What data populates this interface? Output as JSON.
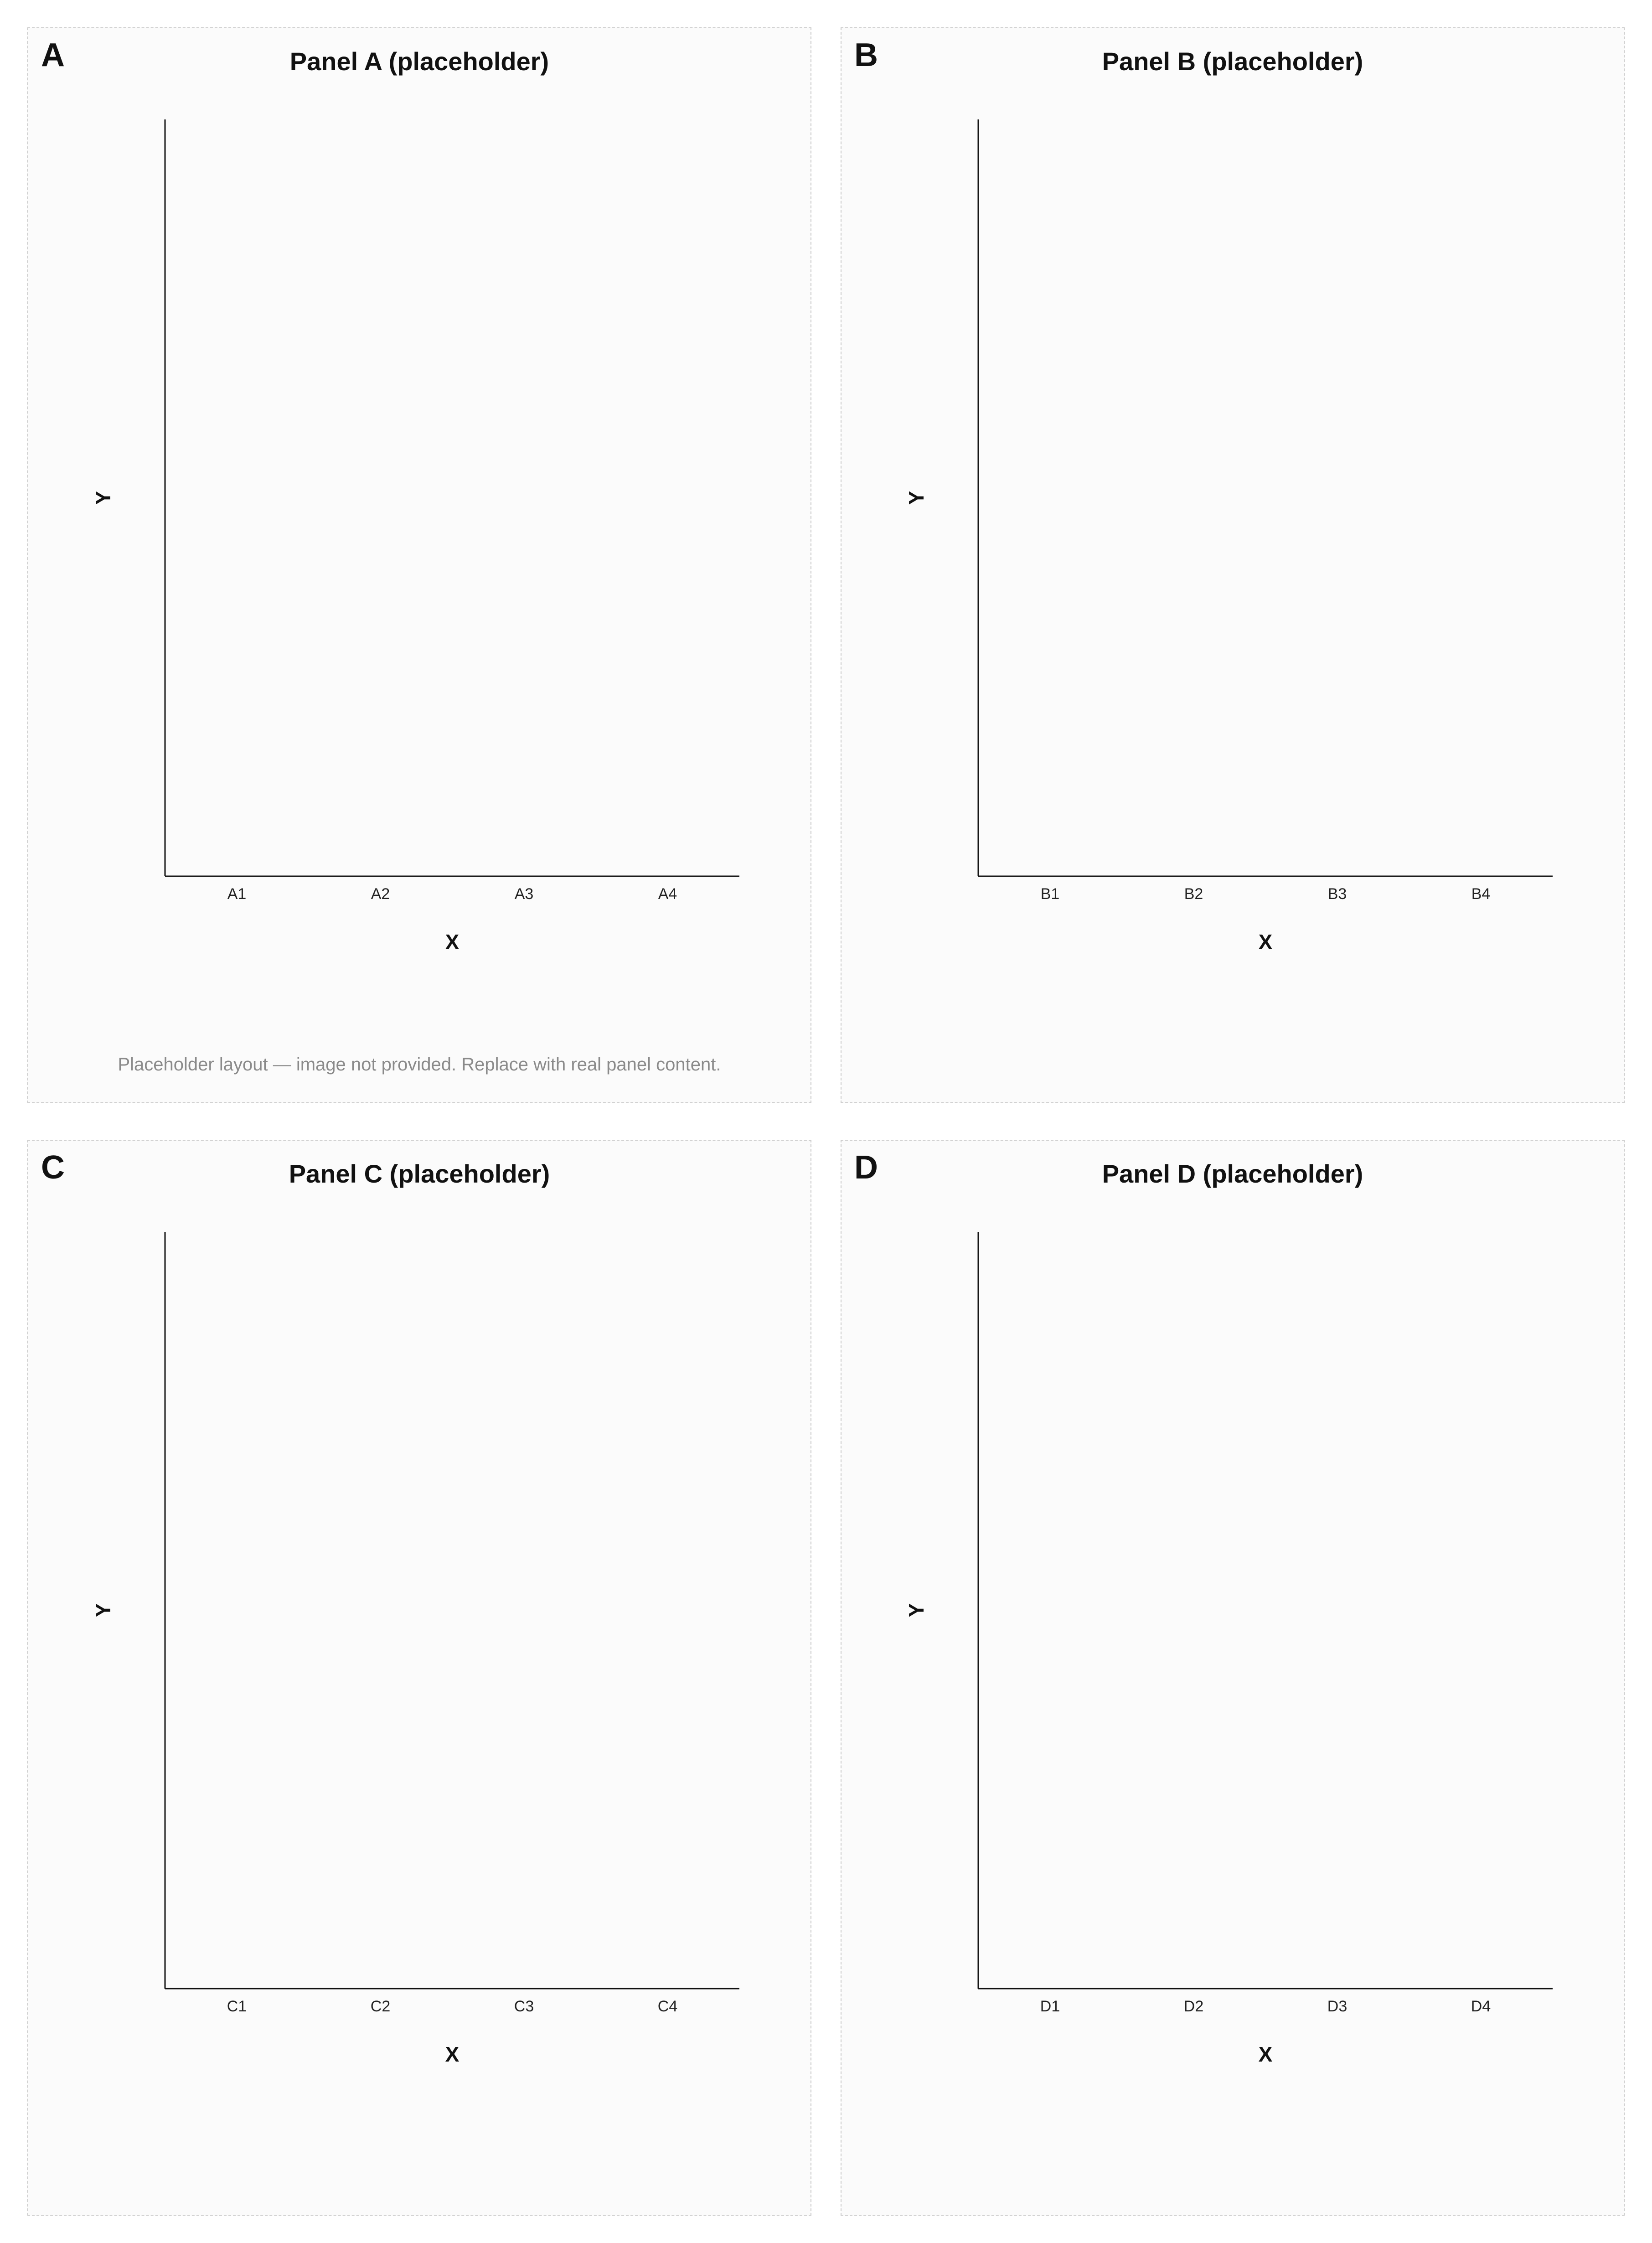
{
  "figure": {
    "note": "Placeholder layout — image not provided. Replace with real panel content.",
    "panels": [
      {
        "label": "A",
        "title": "Panel A (placeholder)",
        "xlabel": "X",
        "ylabel": "Y"
      },
      {
        "label": "B",
        "title": "Panel B (placeholder)",
        "xlabel": "X",
        "ylabel": "Y"
      },
      {
        "label": "C",
        "title": "Panel C (placeholder)",
        "xlabel": "X",
        "ylabel": "Y"
      },
      {
        "label": "D",
        "title": "Panel D (placeholder)",
        "xlabel": "X",
        "ylabel": "Y"
      }
    ]
  },
  "chart_data": [
    {
      "type": "bar",
      "title": "Panel A (placeholder)",
      "categories": [
        "A1",
        "A2",
        "A3",
        "A4"
      ],
      "values": [
        0,
        0,
        0,
        0
      ],
      "xlabel": "X",
      "ylabel": "Y",
      "ylim": [
        0,
        1
      ]
    },
    {
      "type": "bar",
      "title": "Panel B (placeholder)",
      "categories": [
        "B1",
        "B2",
        "B3",
        "B4"
      ],
      "values": [
        0,
        0,
        0,
        0
      ],
      "xlabel": "X",
      "ylabel": "Y",
      "ylim": [
        0,
        1
      ]
    },
    {
      "type": "bar",
      "title": "Panel C (placeholder)",
      "categories": [
        "C1",
        "C2",
        "C3",
        "C4"
      ],
      "values": [
        0,
        0,
        0,
        0
      ],
      "xlabel": "X",
      "ylabel": "Y",
      "ylim": [
        0,
        1
      ]
    },
    {
      "type": "bar",
      "title": "Panel D (placeholder)",
      "categories": [
        "D1",
        "D2",
        "D3",
        "D4"
      ],
      "values": [
        0,
        0,
        0,
        0
      ],
      "xlabel": "X",
      "ylabel": "Y",
      "ylim": [
        0,
        1
      ]
    }
  ]
}
